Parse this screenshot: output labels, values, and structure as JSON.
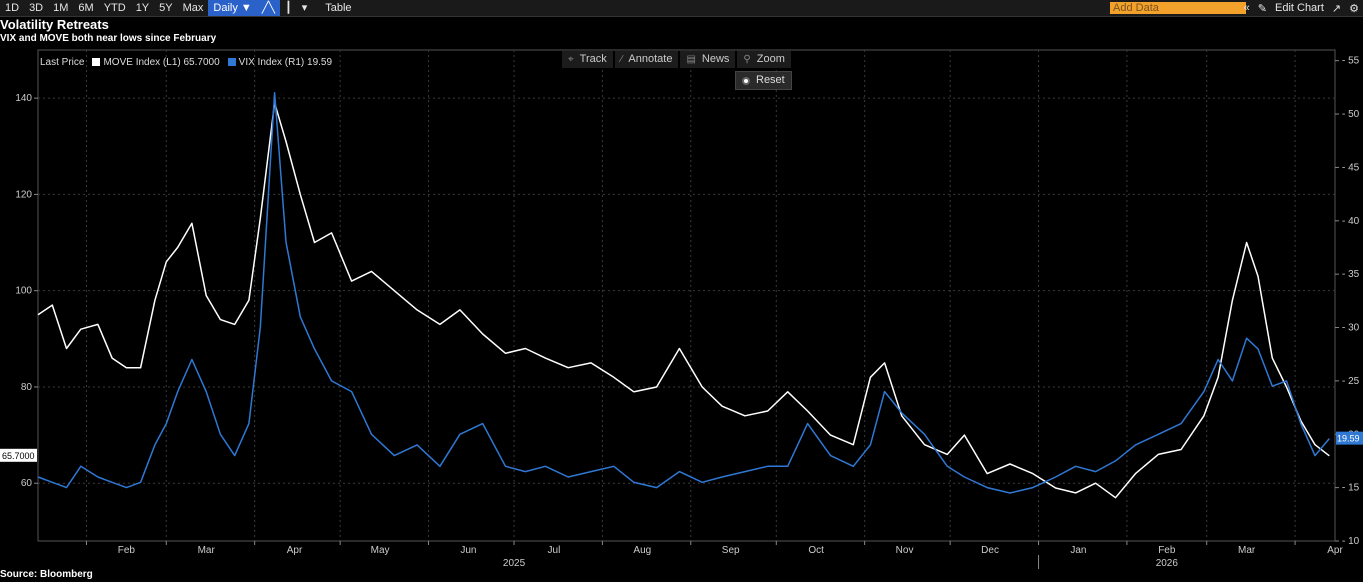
{
  "toolbar": {
    "ranges": [
      "1D",
      "3D",
      "1M",
      "6M",
      "YTD",
      "1Y",
      "5Y",
      "Max"
    ],
    "frequency": "Daily ▼",
    "table_label": "Table",
    "add_data_placeholder": "Add Data",
    "edit_chart_label": "Edit Chart"
  },
  "overlay_tools": {
    "track": "Track",
    "annotate": "Annotate",
    "news": "News",
    "zoom": "Zoom",
    "reset": "Reset"
  },
  "legend": {
    "prefix": "Last Price",
    "move": "MOVE Index  (L1) 65.7000",
    "vix": "VIX Index  (R1) 19.59"
  },
  "source": "Source: Bloomberg",
  "colors": {
    "move": "#ffffff",
    "vix": "#2f78d4",
    "background": "#000000",
    "grid": "#444444"
  },
  "chart_data": {
    "type": "line",
    "title": "Volatility Retreats",
    "subtitle": "VIX and MOVE both near lows since February",
    "x_tick_labels": [
      "Feb",
      "Mar",
      "Apr",
      "May",
      "Jun",
      "Jul",
      "Aug",
      "Sep",
      "Oct",
      "Nov",
      "Dec",
      "Jan",
      "Feb",
      "Mar",
      "Apr"
    ],
    "x_year_labels": [
      "2025",
      "2026"
    ],
    "x_range": [
      "2025-01-15",
      "2026-04-15"
    ],
    "y_left": {
      "ticks": [
        60,
        80,
        100,
        120,
        140
      ],
      "range": [
        48,
        150
      ]
    },
    "y_right": {
      "ticks": [
        10,
        15,
        20,
        25,
        30,
        35,
        40,
        45,
        50,
        55
      ],
      "range": [
        10,
        56
      ]
    },
    "last_value_left": "65.7000",
    "last_value_right": "19.59",
    "grid": true,
    "series": [
      {
        "name": "MOVE Index",
        "axis": "left",
        "points": [
          [
            "2025-01-15",
            95
          ],
          [
            "2025-01-20",
            97
          ],
          [
            "2025-01-25",
            88
          ],
          [
            "2025-01-30",
            92
          ],
          [
            "2025-02-05",
            93
          ],
          [
            "2025-02-10",
            86
          ],
          [
            "2025-02-15",
            84
          ],
          [
            "2025-02-20",
            84
          ],
          [
            "2025-02-25",
            98
          ],
          [
            "2025-03-01",
            106
          ],
          [
            "2025-03-05",
            109
          ],
          [
            "2025-03-10",
            114
          ],
          [
            "2025-03-15",
            99
          ],
          [
            "2025-03-20",
            94
          ],
          [
            "2025-03-25",
            93
          ],
          [
            "2025-03-30",
            98
          ],
          [
            "2025-04-03",
            115
          ],
          [
            "2025-04-08",
            139
          ],
          [
            "2025-04-12",
            131
          ],
          [
            "2025-04-17",
            120
          ],
          [
            "2025-04-22",
            110
          ],
          [
            "2025-04-28",
            112
          ],
          [
            "2025-05-05",
            102
          ],
          [
            "2025-05-12",
            104
          ],
          [
            "2025-05-20",
            100
          ],
          [
            "2025-05-28",
            96
          ],
          [
            "2025-06-05",
            93
          ],
          [
            "2025-06-12",
            96
          ],
          [
            "2025-06-20",
            91
          ],
          [
            "2025-06-28",
            87
          ],
          [
            "2025-07-05",
            88
          ],
          [
            "2025-07-12",
            86
          ],
          [
            "2025-07-20",
            84
          ],
          [
            "2025-07-28",
            85
          ],
          [
            "2025-08-05",
            82
          ],
          [
            "2025-08-12",
            79
          ],
          [
            "2025-08-20",
            80
          ],
          [
            "2025-08-28",
            88
          ],
          [
            "2025-09-05",
            80
          ],
          [
            "2025-09-12",
            76
          ],
          [
            "2025-09-20",
            74
          ],
          [
            "2025-09-28",
            75
          ],
          [
            "2025-10-05",
            79
          ],
          [
            "2025-10-12",
            75
          ],
          [
            "2025-10-20",
            70
          ],
          [
            "2025-10-28",
            68
          ],
          [
            "2025-11-03",
            82
          ],
          [
            "2025-11-08",
            85
          ],
          [
            "2025-11-14",
            74
          ],
          [
            "2025-11-22",
            68
          ],
          [
            "2025-11-30",
            66
          ],
          [
            "2025-12-06",
            70
          ],
          [
            "2025-12-14",
            62
          ],
          [
            "2025-12-22",
            64
          ],
          [
            "2025-12-30",
            62
          ],
          [
            "2026-01-07",
            59
          ],
          [
            "2026-01-14",
            58
          ],
          [
            "2026-01-21",
            60
          ],
          [
            "2026-01-28",
            57
          ],
          [
            "2026-02-04",
            62
          ],
          [
            "2026-02-12",
            66
          ],
          [
            "2026-02-20",
            67
          ],
          [
            "2026-02-28",
            74
          ],
          [
            "2026-03-05",
            82
          ],
          [
            "2026-03-10",
            98
          ],
          [
            "2026-03-15",
            110
          ],
          [
            "2026-03-19",
            103
          ],
          [
            "2026-03-24",
            86
          ],
          [
            "2026-03-29",
            80
          ],
          [
            "2026-04-03",
            73
          ],
          [
            "2026-04-08",
            68
          ],
          [
            "2026-04-13",
            65.7
          ]
        ]
      },
      {
        "name": "VIX Index",
        "axis": "right",
        "points": [
          [
            "2025-01-15",
            16
          ],
          [
            "2025-01-20",
            15.5
          ],
          [
            "2025-01-25",
            15
          ],
          [
            "2025-01-30",
            17
          ],
          [
            "2025-02-05",
            16
          ],
          [
            "2025-02-10",
            15.5
          ],
          [
            "2025-02-15",
            15
          ],
          [
            "2025-02-20",
            15.5
          ],
          [
            "2025-02-25",
            19
          ],
          [
            "2025-03-01",
            21
          ],
          [
            "2025-03-05",
            24
          ],
          [
            "2025-03-10",
            27
          ],
          [
            "2025-03-15",
            24
          ],
          [
            "2025-03-20",
            20
          ],
          [
            "2025-03-25",
            18
          ],
          [
            "2025-03-30",
            21
          ],
          [
            "2025-04-03",
            30
          ],
          [
            "2025-04-08",
            52
          ],
          [
            "2025-04-12",
            38
          ],
          [
            "2025-04-17",
            31
          ],
          [
            "2025-04-22",
            28
          ],
          [
            "2025-04-28",
            25
          ],
          [
            "2025-05-05",
            24
          ],
          [
            "2025-05-12",
            20
          ],
          [
            "2025-05-20",
            18
          ],
          [
            "2025-05-28",
            19
          ],
          [
            "2025-06-05",
            17
          ],
          [
            "2025-06-12",
            20
          ],
          [
            "2025-06-20",
            21
          ],
          [
            "2025-06-28",
            17
          ],
          [
            "2025-07-05",
            16.5
          ],
          [
            "2025-07-12",
            17
          ],
          [
            "2025-07-20",
            16
          ],
          [
            "2025-07-28",
            16.5
          ],
          [
            "2025-08-05",
            17
          ],
          [
            "2025-08-12",
            15.5
          ],
          [
            "2025-08-20",
            15
          ],
          [
            "2025-08-28",
            16.5
          ],
          [
            "2025-09-05",
            15.5
          ],
          [
            "2025-09-12",
            16
          ],
          [
            "2025-09-20",
            16.5
          ],
          [
            "2025-09-28",
            17
          ],
          [
            "2025-10-05",
            17
          ],
          [
            "2025-10-12",
            21
          ],
          [
            "2025-10-20",
            18
          ],
          [
            "2025-10-28",
            17
          ],
          [
            "2025-11-03",
            19
          ],
          [
            "2025-11-08",
            24
          ],
          [
            "2025-11-14",
            22
          ],
          [
            "2025-11-22",
            20
          ],
          [
            "2025-11-30",
            17
          ],
          [
            "2025-12-06",
            16
          ],
          [
            "2025-12-14",
            15
          ],
          [
            "2025-12-22",
            14.5
          ],
          [
            "2025-12-30",
            15
          ],
          [
            "2026-01-07",
            16
          ],
          [
            "2026-01-14",
            17
          ],
          [
            "2026-01-21",
            16.5
          ],
          [
            "2026-01-28",
            17.5
          ],
          [
            "2026-02-04",
            19
          ],
          [
            "2026-02-12",
            20
          ],
          [
            "2026-02-20",
            21
          ],
          [
            "2026-02-28",
            24
          ],
          [
            "2026-03-05",
            27
          ],
          [
            "2026-03-10",
            25
          ],
          [
            "2026-03-15",
            29
          ],
          [
            "2026-03-19",
            28
          ],
          [
            "2026-03-24",
            24.5
          ],
          [
            "2026-03-29",
            25
          ],
          [
            "2026-04-03",
            21
          ],
          [
            "2026-04-08",
            18
          ],
          [
            "2026-04-13",
            19.59
          ]
        ]
      }
    ]
  }
}
